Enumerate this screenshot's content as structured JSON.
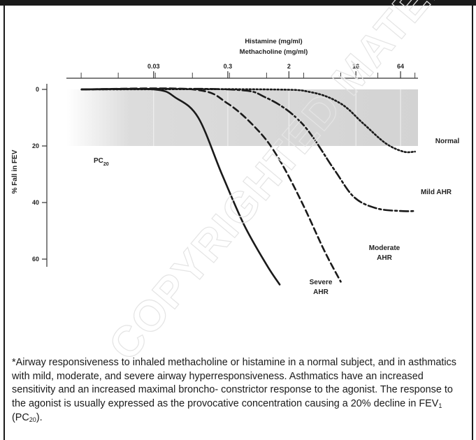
{
  "chart_data": {
    "type": "line",
    "title": "",
    "xlabel_line1": "Histamine (mg/ml)",
    "xlabel_line2": "Methacholine (mg/ml)",
    "ylabel": "% Fall in FEV",
    "x_scale": "log",
    "xlim": [
      0.002,
      110
    ],
    "ylim": [
      0,
      70
    ],
    "y_inverted": true,
    "x_ticks": [
      {
        "value": 0.03,
        "label": "0.03"
      },
      {
        "value": 0.3,
        "label": "0.3"
      },
      {
        "value": 2,
        "label": "2"
      },
      {
        "value": 16,
        "label": "16"
      },
      {
        "value": 64,
        "label": "64"
      }
    ],
    "y_ticks": [
      {
        "value": 0,
        "label": "0"
      },
      {
        "value": 20,
        "label": "20"
      },
      {
        "value": 40,
        "label": "40"
      },
      {
        "value": 60,
        "label": "60"
      }
    ],
    "threshold": {
      "value": 20,
      "label": "PC",
      "label_sub": "20"
    },
    "grid": false,
    "series": [
      {
        "name": "Normal",
        "style": "dotted",
        "points": [
          [
            0.0032,
            0
          ],
          [
            1,
            0
          ],
          [
            4,
            1
          ],
          [
            10,
            5
          ],
          [
            20,
            12
          ],
          [
            40,
            19
          ],
          [
            70,
            22
          ],
          [
            100,
            22
          ]
        ]
      },
      {
        "name": "Mild AHR",
        "style": "dash-dot",
        "points": [
          [
            0.0032,
            0
          ],
          [
            0.3,
            0
          ],
          [
            1,
            3
          ],
          [
            3,
            12
          ],
          [
            8,
            28
          ],
          [
            15,
            38
          ],
          [
            30,
            42
          ],
          [
            64,
            43
          ],
          [
            100,
            43
          ]
        ]
      },
      {
        "name": "Moderate AHR",
        "style": "dashed",
        "points": [
          [
            0.0032,
            0
          ],
          [
            0.1,
            0
          ],
          [
            0.3,
            5
          ],
          [
            0.8,
            15
          ],
          [
            1.5,
            25
          ],
          [
            3,
            40
          ],
          [
            6,
            57
          ],
          [
            10,
            68
          ]
        ]
      },
      {
        "name": "Severe AHR",
        "style": "solid",
        "points": [
          [
            0.0032,
            0
          ],
          [
            0.03,
            0
          ],
          [
            0.06,
            3
          ],
          [
            0.12,
            10
          ],
          [
            0.25,
            30
          ],
          [
            0.5,
            48
          ],
          [
            1,
            62
          ],
          [
            1.5,
            69
          ]
        ]
      }
    ],
    "labels": [
      {
        "series": "Normal",
        "lines": [
          "Normal"
        ]
      },
      {
        "series": "Mild AHR",
        "lines": [
          "Mild AHR"
        ]
      },
      {
        "series": "Moderate AHR",
        "lines": [
          "Moderate",
          "AHR"
        ]
      },
      {
        "series": "Severe AHR",
        "lines": [
          "Severe",
          "AHR"
        ]
      }
    ]
  },
  "caption": {
    "text_before": "*Airway responsiveness to inhaled methacholine or histamine in a normal subject, and in asthmatics with mild, moderate, and severe airway hyperresponsiveness. Asthmatics have an increased sensitivity and an increased maximal broncho- constrictor response to the agonist.  The response to the agonist is usually expressed as the provocative concentration causing a 20% decline in FEV",
    "sub1": "1",
    "text_middle": " (PC",
    "sub2": "20",
    "text_after": ")."
  },
  "watermark": "COPYRIGHTED MATERIAL"
}
